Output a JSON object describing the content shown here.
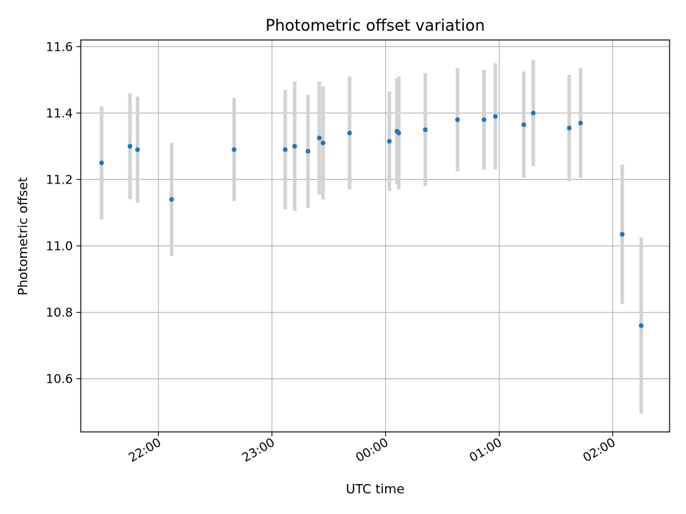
{
  "chart_data": {
    "type": "scatter",
    "title": "Photometric offset variation",
    "xlabel": "UTC time",
    "ylabel": "Photometric offset",
    "x_tick_labels": [
      "22:00",
      "23:00",
      "00:00",
      "01:00",
      "02:00"
    ],
    "y_tick_labels": [
      "10.6",
      "10.8",
      "11.0",
      "11.2",
      "11.4",
      "11.6"
    ],
    "xlim": [
      "21:19",
      "02:30"
    ],
    "ylim": [
      10.44,
      11.62
    ],
    "grid": true,
    "colors": {
      "marker": "#1f77b4",
      "errorbar": "#d3d3d3",
      "grid": "#b0b0b0"
    },
    "points": [
      {
        "time": "21:30",
        "value": 11.25,
        "err": 0.17
      },
      {
        "time": "21:45",
        "value": 11.3,
        "err": 0.16
      },
      {
        "time": "21:49",
        "value": 11.29,
        "err": 0.16
      },
      {
        "time": "22:07",
        "value": 11.14,
        "err": 0.17
      },
      {
        "time": "22:40",
        "value": 11.29,
        "err": 0.155
      },
      {
        "time": "23:07",
        "value": 11.29,
        "err": 0.18
      },
      {
        "time": "23:12",
        "value": 11.3,
        "err": 0.195
      },
      {
        "time": "23:19",
        "value": 11.285,
        "err": 0.17
      },
      {
        "time": "23:25",
        "value": 11.325,
        "err": 0.17
      },
      {
        "time": "23:27",
        "value": 11.31,
        "err": 0.17
      },
      {
        "time": "23:41",
        "value": 11.34,
        "err": 0.17
      },
      {
        "time": "00:02",
        "value": 11.315,
        "err": 0.15
      },
      {
        "time": "00:06",
        "value": 11.345,
        "err": 0.16
      },
      {
        "time": "00:07",
        "value": 11.34,
        "err": 0.17
      },
      {
        "time": "00:21",
        "value": 11.35,
        "err": 0.17
      },
      {
        "time": "00:38",
        "value": 11.38,
        "err": 0.155
      },
      {
        "time": "00:52",
        "value": 11.38,
        "err": 0.15
      },
      {
        "time": "00:58",
        "value": 11.39,
        "err": 0.16
      },
      {
        "time": "01:13",
        "value": 11.365,
        "err": 0.16
      },
      {
        "time": "01:18",
        "value": 11.4,
        "err": 0.16
      },
      {
        "time": "01:37",
        "value": 11.355,
        "err": 0.16
      },
      {
        "time": "01:43",
        "value": 11.37,
        "err": 0.165
      },
      {
        "time": "02:05",
        "value": 11.035,
        "err": 0.21
      },
      {
        "time": "02:15",
        "value": 10.76,
        "err": 0.265
      }
    ]
  }
}
